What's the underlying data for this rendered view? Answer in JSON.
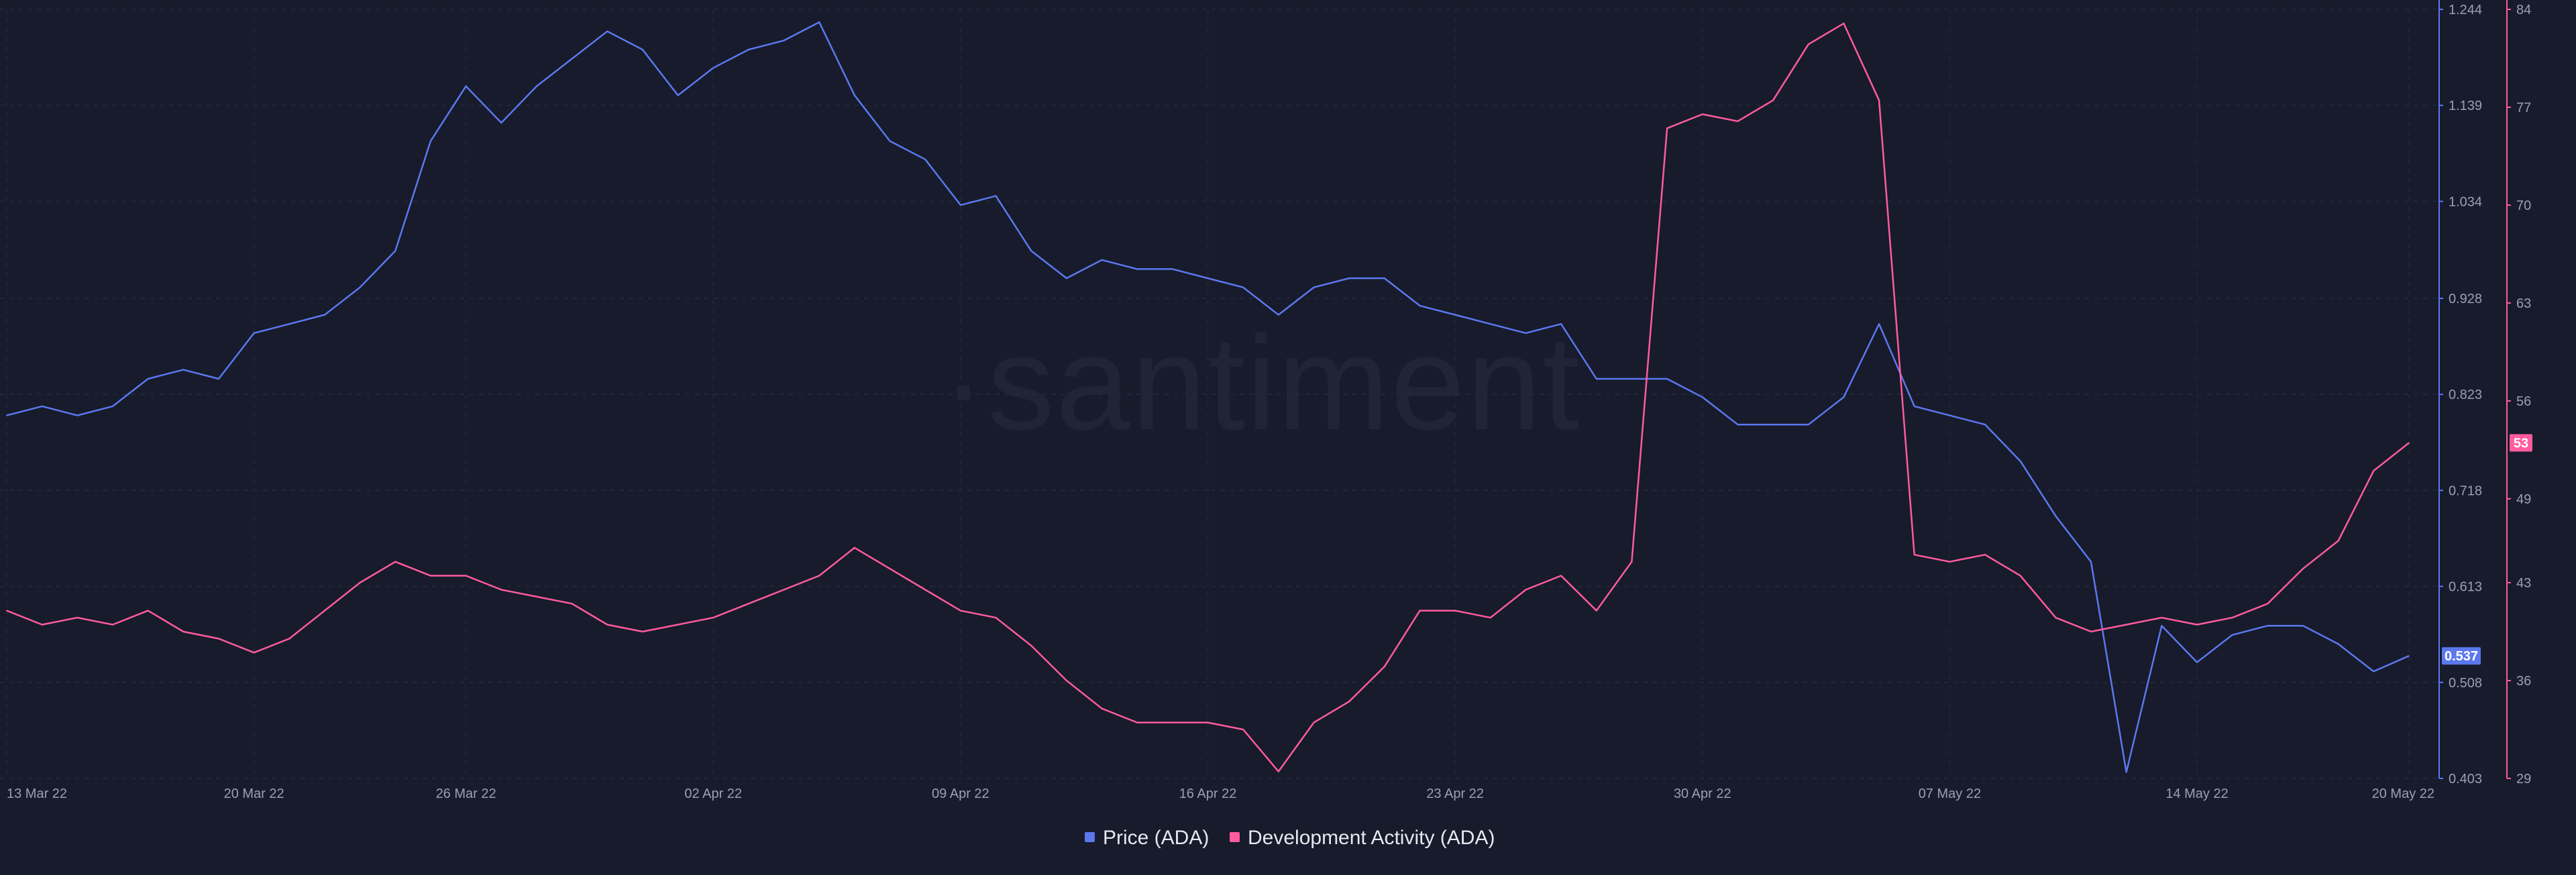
{
  "watermark": "·santiment",
  "legend": [
    {
      "label": "Price (ADA)",
      "color": "#5b78ef"
    },
    {
      "label": "Development Activity (ADA)",
      "color": "#ff5b9d"
    }
  ],
  "chart_data": {
    "type": "line",
    "title": "",
    "x": {
      "start": "2022-03-13",
      "end": "2022-05-20",
      "tick_labels": [
        "13 Mar 22",
        "20 Mar 22",
        "26 Mar 22",
        "02 Apr 22",
        "09 Apr 22",
        "16 Apr 22",
        "23 Apr 22",
        "30 Apr 22",
        "07 May 22",
        "14 May 22",
        "20 May 22"
      ],
      "tick_dates": [
        "2022-03-13",
        "2022-03-20",
        "2022-03-26",
        "2022-04-02",
        "2022-04-09",
        "2022-04-16",
        "2022-04-23",
        "2022-04-30",
        "2022-05-07",
        "2022-05-14",
        "2022-05-20"
      ]
    },
    "y_left": {
      "series": "Price (ADA)",
      "range": [
        0.403,
        1.244
      ],
      "ticks": [
        "1.244",
        "1.139",
        "1.034",
        "0.928",
        "0.823",
        "0.718",
        "0.613",
        "0.508",
        "0.403"
      ],
      "current_value": "0.537",
      "color": "#5b78ef"
    },
    "y_right": {
      "series": "Development Activity (ADA)",
      "range": [
        29,
        84
      ],
      "ticks": [
        "84",
        "77",
        "70",
        "63",
        "56",
        "49",
        "43",
        "36",
        "29"
      ],
      "current_value": "53",
      "color": "#ff5b9d"
    },
    "grid": true,
    "legend_position": "bottom-center",
    "series": [
      {
        "name": "Price (ADA)",
        "axis": "left",
        "color": "#5b78ef",
        "points": [
          [
            "2022-03-13",
            0.8
          ],
          [
            "2022-03-14",
            0.81
          ],
          [
            "2022-03-15",
            0.8
          ],
          [
            "2022-03-16",
            0.81
          ],
          [
            "2022-03-17",
            0.84
          ],
          [
            "2022-03-18",
            0.85
          ],
          [
            "2022-03-19",
            0.84
          ],
          [
            "2022-03-20",
            0.89
          ],
          [
            "2022-03-21",
            0.9
          ],
          [
            "2022-03-22",
            0.91
          ],
          [
            "2022-03-23",
            0.94
          ],
          [
            "2022-03-24",
            0.98
          ],
          [
            "2022-03-25",
            1.1
          ],
          [
            "2022-03-26",
            1.16
          ],
          [
            "2022-03-27",
            1.12
          ],
          [
            "2022-03-28",
            1.16
          ],
          [
            "2022-03-29",
            1.19
          ],
          [
            "2022-03-30",
            1.22
          ],
          [
            "2022-03-31",
            1.2
          ],
          [
            "2022-04-01",
            1.15
          ],
          [
            "2022-04-02",
            1.18
          ],
          [
            "2022-04-03",
            1.2
          ],
          [
            "2022-04-04",
            1.21
          ],
          [
            "2022-04-05",
            1.23
          ],
          [
            "2022-04-06",
            1.15
          ],
          [
            "2022-04-07",
            1.1
          ],
          [
            "2022-04-08",
            1.08
          ],
          [
            "2022-04-09",
            1.03
          ],
          [
            "2022-04-10",
            1.04
          ],
          [
            "2022-04-11",
            0.98
          ],
          [
            "2022-04-12",
            0.95
          ],
          [
            "2022-04-13",
            0.97
          ],
          [
            "2022-04-14",
            0.96
          ],
          [
            "2022-04-15",
            0.96
          ],
          [
            "2022-04-16",
            0.95
          ],
          [
            "2022-04-17",
            0.94
          ],
          [
            "2022-04-18",
            0.91
          ],
          [
            "2022-04-19",
            0.94
          ],
          [
            "2022-04-20",
            0.95
          ],
          [
            "2022-04-21",
            0.95
          ],
          [
            "2022-04-22",
            0.92
          ],
          [
            "2022-04-23",
            0.91
          ],
          [
            "2022-04-24",
            0.9
          ],
          [
            "2022-04-25",
            0.89
          ],
          [
            "2022-04-26",
            0.9
          ],
          [
            "2022-04-27",
            0.84
          ],
          [
            "2022-04-28",
            0.84
          ],
          [
            "2022-04-29",
            0.84
          ],
          [
            "2022-04-30",
            0.82
          ],
          [
            "2022-05-01",
            0.79
          ],
          [
            "2022-05-02",
            0.79
          ],
          [
            "2022-05-03",
            0.79
          ],
          [
            "2022-05-04",
            0.82
          ],
          [
            "2022-05-05",
            0.9
          ],
          [
            "2022-05-06",
            0.81
          ],
          [
            "2022-05-07",
            0.8
          ],
          [
            "2022-05-08",
            0.79
          ],
          [
            "2022-05-09",
            0.75
          ],
          [
            "2022-05-10",
            0.69
          ],
          [
            "2022-05-11",
            0.64
          ],
          [
            "2022-05-12",
            0.41
          ],
          [
            "2022-05-13",
            0.57
          ],
          [
            "2022-05-14",
            0.53
          ],
          [
            "2022-05-15",
            0.56
          ],
          [
            "2022-05-16",
            0.57
          ],
          [
            "2022-05-17",
            0.57
          ],
          [
            "2022-05-18",
            0.55
          ],
          [
            "2022-05-19",
            0.52
          ],
          [
            "2022-05-20",
            0.537
          ]
        ]
      },
      {
        "name": "Development Activity (ADA)",
        "axis": "right",
        "color": "#ff5b9d",
        "points": [
          [
            "2022-03-13",
            41.0
          ],
          [
            "2022-03-14",
            40.0
          ],
          [
            "2022-03-15",
            40.5
          ],
          [
            "2022-03-16",
            40.0
          ],
          [
            "2022-03-17",
            41.0
          ],
          [
            "2022-03-18",
            39.5
          ],
          [
            "2022-03-19",
            39.0
          ],
          [
            "2022-03-20",
            38.0
          ],
          [
            "2022-03-21",
            39.0
          ],
          [
            "2022-03-22",
            41.0
          ],
          [
            "2022-03-23",
            43.0
          ],
          [
            "2022-03-24",
            44.5
          ],
          [
            "2022-03-25",
            43.5
          ],
          [
            "2022-03-26",
            43.5
          ],
          [
            "2022-03-27",
            42.5
          ],
          [
            "2022-03-28",
            42.0
          ],
          [
            "2022-03-29",
            41.5
          ],
          [
            "2022-03-30",
            40.0
          ],
          [
            "2022-03-31",
            39.5
          ],
          [
            "2022-04-01",
            40.0
          ],
          [
            "2022-04-02",
            40.5
          ],
          [
            "2022-04-03",
            41.5
          ],
          [
            "2022-04-04",
            42.5
          ],
          [
            "2022-04-05",
            43.5
          ],
          [
            "2022-04-06",
            45.5
          ],
          [
            "2022-04-07",
            44.0
          ],
          [
            "2022-04-08",
            42.5
          ],
          [
            "2022-04-09",
            41.0
          ],
          [
            "2022-04-10",
            40.5
          ],
          [
            "2022-04-11",
            38.5
          ],
          [
            "2022-04-12",
            36.0
          ],
          [
            "2022-04-13",
            34.0
          ],
          [
            "2022-04-14",
            33.0
          ],
          [
            "2022-04-15",
            33.0
          ],
          [
            "2022-04-16",
            33.0
          ],
          [
            "2022-04-17",
            32.5
          ],
          [
            "2022-04-18",
            29.5
          ],
          [
            "2022-04-19",
            33.0
          ],
          [
            "2022-04-20",
            34.5
          ],
          [
            "2022-04-21",
            37.0
          ],
          [
            "2022-04-22",
            41.0
          ],
          [
            "2022-04-23",
            41.0
          ],
          [
            "2022-04-24",
            40.5
          ],
          [
            "2022-04-25",
            42.5
          ],
          [
            "2022-04-26",
            43.5
          ],
          [
            "2022-04-27",
            41.0
          ],
          [
            "2022-04-28",
            44.5
          ],
          [
            "2022-04-29",
            75.5
          ],
          [
            "2022-04-30",
            76.5
          ],
          [
            "2022-05-01",
            76.0
          ],
          [
            "2022-05-02",
            77.5
          ],
          [
            "2022-05-03",
            81.5
          ],
          [
            "2022-05-04",
            83.0
          ],
          [
            "2022-05-05",
            77.5
          ],
          [
            "2022-05-06",
            45.0
          ],
          [
            "2022-05-07",
            44.5
          ],
          [
            "2022-05-08",
            45.0
          ],
          [
            "2022-05-09",
            43.5
          ],
          [
            "2022-05-10",
            40.5
          ],
          [
            "2022-05-11",
            39.5
          ],
          [
            "2022-05-12",
            40.0
          ],
          [
            "2022-05-13",
            40.5
          ],
          [
            "2022-05-14",
            40.0
          ],
          [
            "2022-05-15",
            40.5
          ],
          [
            "2022-05-16",
            41.5
          ],
          [
            "2022-05-17",
            44.0
          ],
          [
            "2022-05-18",
            46.0
          ],
          [
            "2022-05-19",
            51.0
          ],
          [
            "2022-05-20",
            53.0
          ]
        ]
      }
    ]
  }
}
